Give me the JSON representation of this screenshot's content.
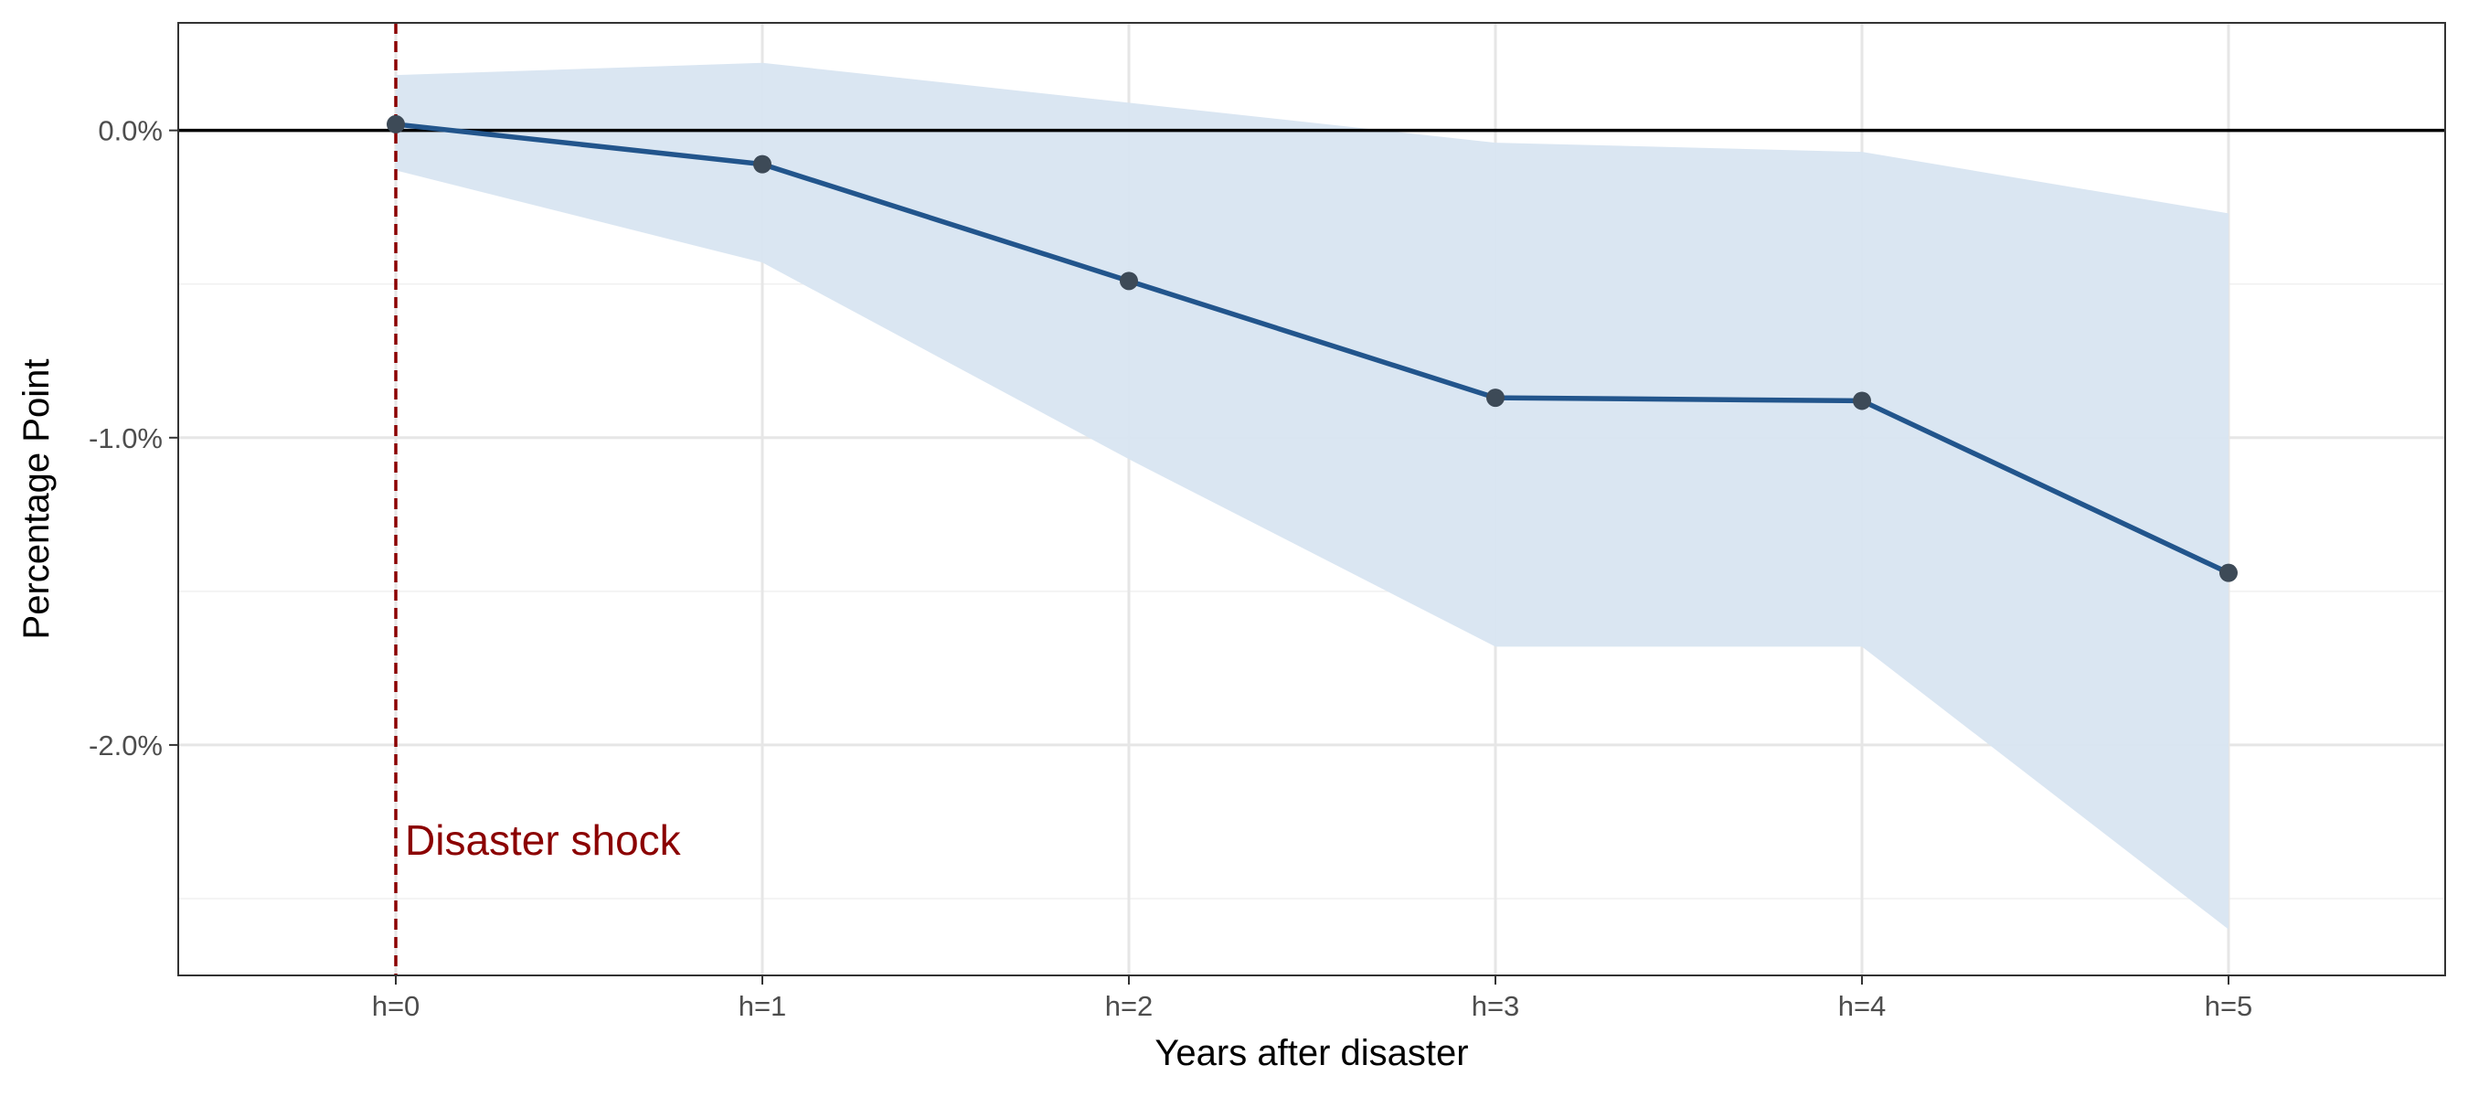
{
  "chart_data": {
    "type": "line",
    "title": "",
    "xlabel": "Years after disaster",
    "ylabel": "Percentage Point",
    "categories": [
      "h=0",
      "h=1",
      "h=2",
      "h=3",
      "h=4",
      "h=5"
    ],
    "series": [
      {
        "values": [
          0.02,
          -0.11,
          -0.49,
          -0.87,
          -0.88,
          -1.44
        ],
        "lower": [
          -0.13,
          -0.43,
          -1.07,
          -1.68,
          -1.68,
          -2.6
        ],
        "upper": [
          0.18,
          0.22,
          0.09,
          -0.04,
          -0.07,
          -0.27
        ]
      }
    ],
    "ylim": [
      -2.75,
      0.35
    ],
    "yticks": [
      0.0,
      -1.0,
      -2.0
    ],
    "ytick_labels": [
      "0.0%",
      "-1.0%",
      "-2.0%"
    ],
    "reference_line_y": 0.0,
    "vline": {
      "x_index": 0,
      "label": "Disaster shock"
    },
    "grid": true,
    "legend": "none",
    "colors": {
      "line": "#22558c",
      "band": "#d8e5f1",
      "point": "#3d4a57",
      "vline": "#8b0000",
      "zero_line": "#000000"
    }
  }
}
